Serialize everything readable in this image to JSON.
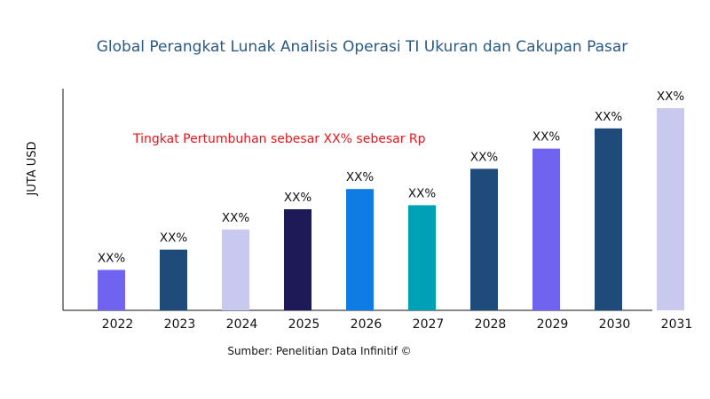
{
  "chart_data": {
    "type": "bar",
    "title": "Global Perangkat Lunak Analisis Operasi TI Ukuran dan Cakupan Pasar",
    "xlabel": "",
    "ylabel": "JUTA USD",
    "categories": [
      "2022",
      "2023",
      "2024",
      "2025",
      "2026",
      "2027",
      "2028",
      "2029",
      "2030",
      "2031"
    ],
    "values": [
      20,
      30,
      40,
      50,
      60,
      52,
      70,
      80,
      90,
      100
    ],
    "data_labels": [
      "XX%",
      "XX%",
      "XX%",
      "XX%",
      "XX%",
      "XX%",
      "XX%",
      "XX%",
      "XX%",
      "XX%"
    ],
    "colors": [
      "#7063f0",
      "#1f4b7b",
      "#c9c9ef",
      "#1e1a58",
      "#0f7be4",
      "#00a1b6",
      "#1f4b7b",
      "#7063f0",
      "#1f4b7b",
      "#c9c9ef"
    ],
    "ylim": [
      0,
      100
    ],
    "grid": false,
    "y_ticks_shown": false,
    "annotation": "Tingkat Pertumbuhan sebesar XX% sebesar Rp",
    "annotation_color": "#e8141c",
    "source": "Sumber: Penelitian Data Infinitif ©"
  }
}
